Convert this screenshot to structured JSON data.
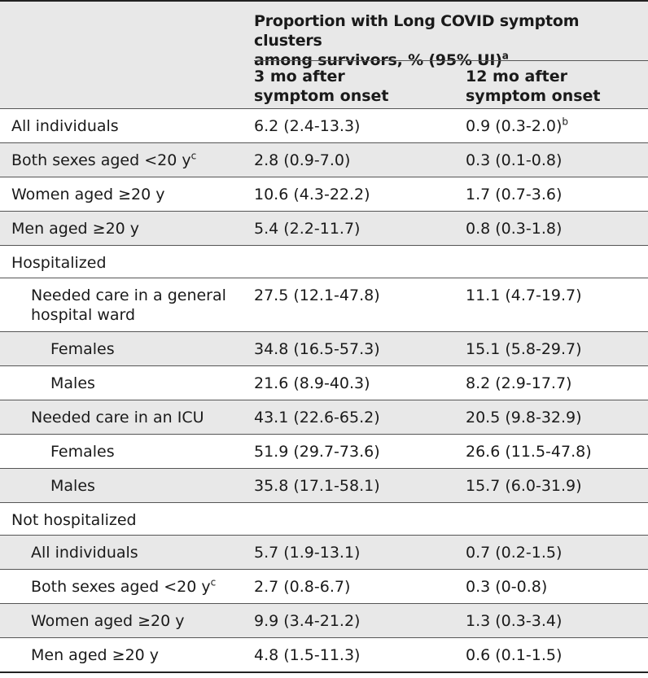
{
  "header": {
    "spanner_line1": "Proportion with Long COVID symptom clusters",
    "spanner_line2": "among survivors, % (95% UI)",
    "spanner_sup": "a",
    "col1_line1": "3 mo after",
    "col1_line2": "symptom onset",
    "col2_line1": "12 mo after",
    "col2_line2": "symptom onset"
  },
  "rows": [
    {
      "label": "All individuals",
      "v1": "6.2 (2.4-13.3)",
      "v2": "0.9 (0.3-2.0)",
      "v2_sup": "b"
    },
    {
      "label": "Both sexes aged <20 y",
      "label_sup": "c",
      "v1": "2.8 (0.9-7.0)",
      "v2": "0.3 (0.1-0.8)"
    },
    {
      "label": "Women aged ≥20 y",
      "v1": "10.6 (4.3-22.2)",
      "v2": "1.7 (0.7-3.6)"
    },
    {
      "label": "Men aged ≥20 y",
      "v1": "5.4 (2.2-11.7)",
      "v2": "0.8 (0.3-1.8)"
    },
    {
      "label": "Hospitalized",
      "v1": "",
      "v2": ""
    },
    {
      "label_line1": "Needed care in a general",
      "label_line2": "hospital ward",
      "v1": "27.5 (12.1-47.8)",
      "v2": "11.1 (4.7-19.7)"
    },
    {
      "label": "Females",
      "v1": "34.8 (16.5-57.3)",
      "v2": "15.1 (5.8-29.7)"
    },
    {
      "label": "Males",
      "v1": "21.6 (8.9-40.3)",
      "v2": "8.2 (2.9-17.7)"
    },
    {
      "label": "Needed care in an ICU",
      "v1": "43.1 (22.6-65.2)",
      "v2": "20.5 (9.8-32.9)"
    },
    {
      "label": "Females",
      "v1": "51.9 (29.7-73.6)",
      "v2": "26.6 (11.5-47.8)"
    },
    {
      "label": "Males",
      "v1": "35.8 (17.1-58.1)",
      "v2": "15.7 (6.0-31.9)"
    },
    {
      "label": "Not hospitalized",
      "v1": "",
      "v2": ""
    },
    {
      "label": "All individuals",
      "v1": "5.7 (1.9-13.1)",
      "v2": "0.7 (0.2-1.5)"
    },
    {
      "label": "Both sexes aged <20 y",
      "label_sup": "c",
      "v1": "2.7 (0.8-6.7)",
      "v2": "0.3 (0-0.8)"
    },
    {
      "label": "Women aged ≥20 y",
      "v1": "9.9 (3.4-21.2)",
      "v2": "1.3 (0.3-3.4)"
    },
    {
      "label": "Men aged ≥20 y",
      "v1": "4.8 (1.5-11.3)",
      "v2": "0.6 (0.1-1.5)"
    }
  ]
}
